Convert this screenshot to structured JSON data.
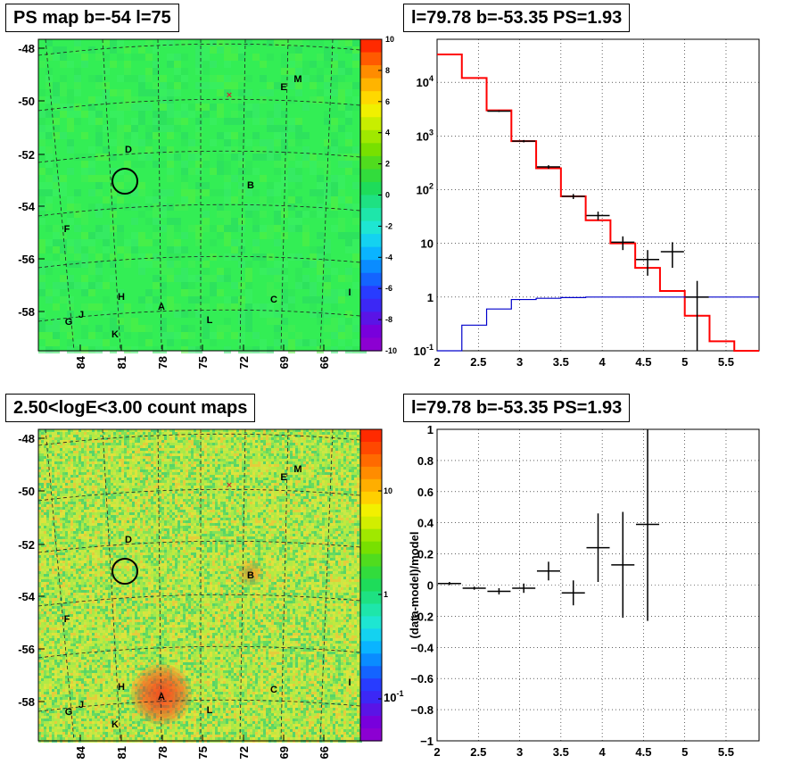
{
  "titles": {
    "ps_map": "PS map b=-54 l=75",
    "spectrum": "l=79.78 b=-53.35 PS=1.93",
    "count_map": "2.50<logE<3.00 count maps",
    "residual": "l=79.78 b=-53.35 PS=1.93"
  },
  "map_axes": {
    "y_ticks": [
      "-48",
      "-50",
      "-52",
      "-54",
      "-56",
      "-58"
    ],
    "x_ticks": [
      "84",
      "81",
      "78",
      "75",
      "72",
      "69",
      "66"
    ],
    "source_labels": [
      "D",
      "B",
      "F",
      "H",
      "A",
      "C",
      "I",
      "G",
      "J",
      "K",
      "L",
      "E",
      "M"
    ]
  },
  "colors": {
    "map_background": "#33ee55",
    "count_background": "#a6e84a",
    "model_line": "#ff0000",
    "background_line": "#0000cc",
    "data": "#000000"
  },
  "chart_data": [
    {
      "type": "heatmap",
      "title": "PS map b=-54 l=75",
      "colorbar": {
        "range": [
          -10,
          10
        ],
        "ticks": [
          "10",
          "8",
          "6",
          "4",
          "2",
          "0",
          "-2",
          "-4",
          "-6",
          "-8",
          "-10"
        ]
      },
      "marker_circle": {
        "l": 80.4,
        "b": -53.0
      },
      "sources": [
        "D",
        "B",
        "F",
        "H",
        "A",
        "C",
        "I",
        "G",
        "J",
        "K",
        "L",
        "E",
        "M"
      ]
    },
    {
      "type": "line",
      "title": "l=79.78 b=-53.35 PS=1.93",
      "xlim": [
        2,
        5.9
      ],
      "ylim_log10": [
        -1,
        4.8
      ],
      "y_scale": "log",
      "y_tick_labels": [
        "10^-1",
        "1",
        "10",
        "10^2",
        "10^3",
        "10^4"
      ],
      "x_tick_labels": [
        "2",
        "2.5",
        "3",
        "3.5",
        "4",
        "4.5",
        "5",
        "5.5"
      ],
      "bin_edges": [
        2.0,
        2.3,
        2.6,
        2.9,
        3.2,
        3.5,
        3.8,
        4.1,
        4.4,
        4.7,
        5.0,
        5.3,
        5.6,
        5.9
      ],
      "series": [
        {
          "values": [
            33000,
            12000,
            3000,
            800,
            250,
            75,
            27,
            10,
            3.5,
            1.3,
            0.45,
            0.15,
            0.1
          ]
        },
        {
          "values": [
            0.1,
            0.3,
            0.6,
            0.9,
            0.95,
            0.98,
            1.0,
            1.0,
            1.0,
            1.0,
            1.0,
            1.0,
            1.0
          ]
        }
      ],
      "data_points": [
        {
          "x": 2.75,
          "y": 2900,
          "yerr": [
            100,
            100
          ]
        },
        {
          "x": 3.05,
          "y": 800,
          "yerr": [
            40,
            40
          ]
        },
        {
          "x": 3.35,
          "y": 265,
          "yerr": [
            20,
            20
          ]
        },
        {
          "x": 3.65,
          "y": 75,
          "yerr": [
            8,
            8
          ]
        },
        {
          "x": 3.95,
          "y": 33,
          "yerr": [
            6,
            6
          ]
        },
        {
          "x": 4.25,
          "y": 10.5,
          "yerr": [
            3,
            3
          ]
        },
        {
          "x": 4.55,
          "y": 5,
          "yerr": [
            2.5,
            2.5
          ]
        },
        {
          "x": 4.85,
          "y": 7,
          "yerr": [
            3.5,
            3.5
          ]
        },
        {
          "x": 5.15,
          "y": 1,
          "yerr": [
            0.9,
            1.0
          ]
        }
      ]
    },
    {
      "type": "heatmap",
      "title": "2.50<logE<3.00 count maps",
      "colorbar": {
        "scale": "log",
        "ticks": [
          "10",
          "1",
          "10^-1"
        ]
      },
      "marker_circle": {
        "l": 80.4,
        "b": -53.0
      },
      "sources": [
        "D",
        "B",
        "F",
        "H",
        "A",
        "C",
        "I",
        "G",
        "J",
        "K",
        "L",
        "E",
        "M"
      ]
    },
    {
      "type": "scatter",
      "title": "l=79.78 b=-53.35 PS=1.93",
      "ylabel": "(data-model)/model",
      "xlim": [
        2,
        5.9
      ],
      "ylim": [
        -1,
        1
      ],
      "x_tick_labels": [
        "2",
        "2.5",
        "3",
        "3.5",
        "4",
        "4.5",
        "5",
        "5.5"
      ],
      "y_tick_labels": [
        "1",
        "0.8",
        "0.6",
        "0.4",
        "0.2",
        "0",
        "-0.2",
        "-0.4",
        "-0.6",
        "-0.8",
        "-1"
      ],
      "points": [
        {
          "x": 2.15,
          "y": 0.01,
          "yerr": 0.01
        },
        {
          "x": 2.45,
          "y": -0.02,
          "yerr": 0.01
        },
        {
          "x": 2.75,
          "y": -0.04,
          "yerr": 0.02
        },
        {
          "x": 3.05,
          "y": -0.02,
          "yerr": 0.03
        },
        {
          "x": 3.35,
          "y": 0.09,
          "yerr": 0.06
        },
        {
          "x": 3.65,
          "y": -0.05,
          "yerr": 0.08
        },
        {
          "x": 3.95,
          "y": 0.24,
          "yerr": 0.22
        },
        {
          "x": 4.25,
          "y": 0.13,
          "yerr": 0.34
        },
        {
          "x": 4.55,
          "y": 0.39,
          "yerr": 0.62
        }
      ]
    }
  ]
}
